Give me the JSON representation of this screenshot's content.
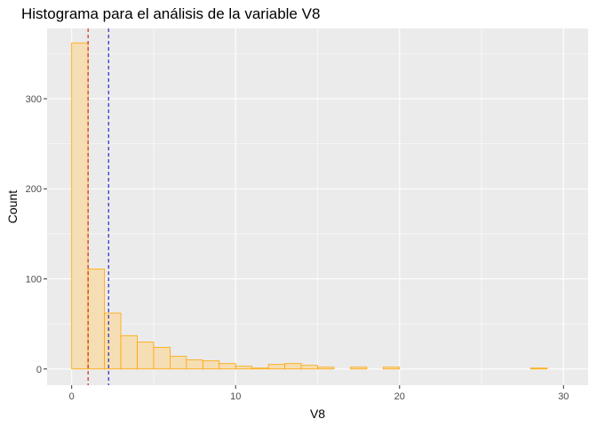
{
  "chart_data": {
    "type": "bar",
    "title": "Histograma para el análisis de la variable V8",
    "xlabel": "V8",
    "ylabel": "Count",
    "xlim": [
      -1.5,
      31.5
    ],
    "ylim": [
      -18,
      378
    ],
    "x_ticks": [
      0,
      10,
      20,
      30
    ],
    "x_tick_labels": [
      "0",
      "10",
      "20",
      "30"
    ],
    "y_ticks": [
      0,
      100,
      200,
      300
    ],
    "y_tick_labels": [
      "0",
      "100",
      "200",
      "300"
    ],
    "bin_width": 1,
    "bin_start": 0,
    "values": [
      362,
      111,
      62,
      37,
      30,
      24,
      14,
      10,
      9,
      6,
      3,
      1,
      5,
      6,
      4,
      2,
      0,
      2,
      0,
      2,
      0,
      0,
      0,
      0,
      0,
      0,
      0,
      0,
      1,
      0
    ],
    "vlines": [
      {
        "x": 1.0,
        "color": "#cc0000",
        "style": "dashed"
      },
      {
        "x": 2.25,
        "color": "#0000cc",
        "style": "dashed"
      }
    ],
    "colors": {
      "panel_background": "#ebebeb",
      "grid": "#ffffff",
      "bar_fill": "#f5deb3",
      "bar_stroke": "#ffa500"
    },
    "grid": true,
    "legend": "none"
  }
}
